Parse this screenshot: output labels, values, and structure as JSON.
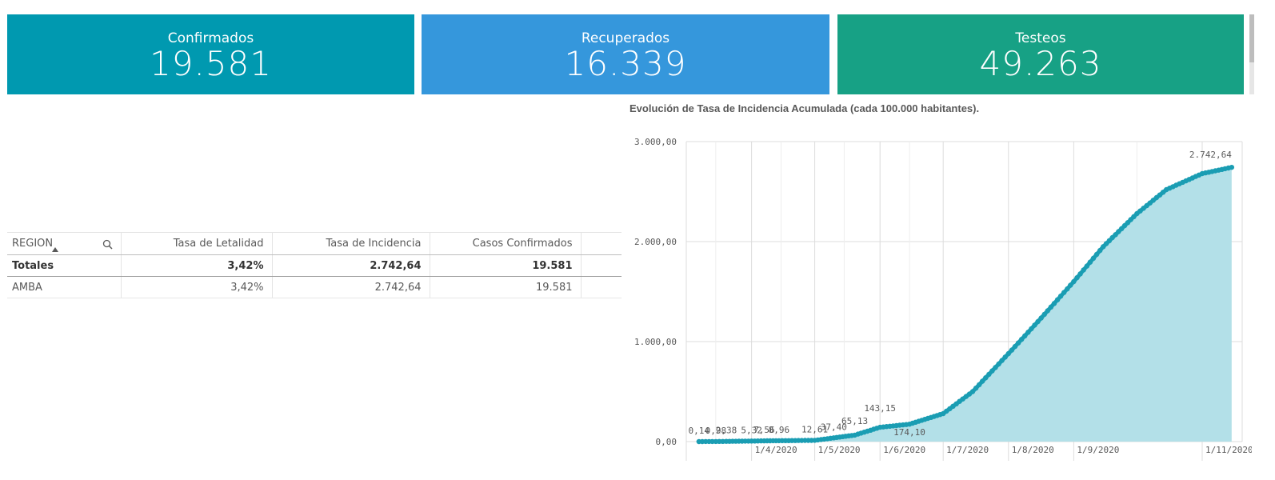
{
  "kpis": {
    "confirmados": {
      "label": "Confirmados",
      "value": "19.581",
      "color": "#0099b0"
    },
    "recuperados": {
      "label": "Recuperados",
      "value": "16.339",
      "color": "#3597dc"
    },
    "testeos": {
      "label": "Testeos",
      "value": "49.263",
      "color": "#17a185"
    }
  },
  "table": {
    "headers": [
      "REGION",
      "Tasa de Letalidad",
      "Tasa de Incidencia",
      "Casos Confirmados"
    ],
    "totals": {
      "label": "Totales",
      "letalidad": "3,42%",
      "incidencia": "2.742,64",
      "confirmados": "19.581"
    },
    "rows": [
      {
        "region": "AMBA",
        "letalidad": "3,42%",
        "incidencia": "2.742,64",
        "confirmados": "19.581"
      }
    ]
  },
  "chart_data": {
    "type": "area",
    "title": "Evolución de Tasa de Incidencia Acumulada (cada 100.000 habitantes).",
    "ylim": [
      0,
      3000
    ],
    "y_ticks": [
      "0,00",
      "1.000,00",
      "2.000,00",
      "3.000,00"
    ],
    "x_tick_labels": [
      "1/4/2020",
      "1/5/2020",
      "1/6/2020",
      "1/7/2020",
      "1/8/2020",
      "1/9/2020",
      "1/11/2020"
    ],
    "series": [
      {
        "x": [
          "2020-03-07",
          "2020-03-15",
          "2020-03-20",
          "2020-04-01",
          "2020-04-07",
          "2020-04-14",
          "2020-05-01",
          "2020-05-10",
          "2020-05-20",
          "2020-06-01",
          "2020-06-15",
          "2020-07-01",
          "2020-07-15",
          "2020-08-01",
          "2020-08-15",
          "2020-09-01",
          "2020-09-15",
          "2020-10-01",
          "2020-10-15",
          "2020-11-01",
          "2020-11-15"
        ],
        "y": [
          0.14,
          0.98,
          2.38,
          5.32,
          7.56,
          8.96,
          12.61,
          37.4,
          65.13,
          143.15,
          174.1,
          280,
          500,
          880,
          1200,
          1600,
          1950,
          2280,
          2520,
          2680,
          2742.64
        ]
      }
    ],
    "data_labels": [
      "0,14",
      "0,98",
      "2,38",
      "5,32",
      "7,56",
      "8,96",
      "12,61",
      "37,40",
      "65,13",
      "143,15",
      "174,10",
      "2.742,64"
    ],
    "colors": {
      "line": "#1a9db3",
      "fill": "#b3e0e8"
    },
    "grid": true
  }
}
